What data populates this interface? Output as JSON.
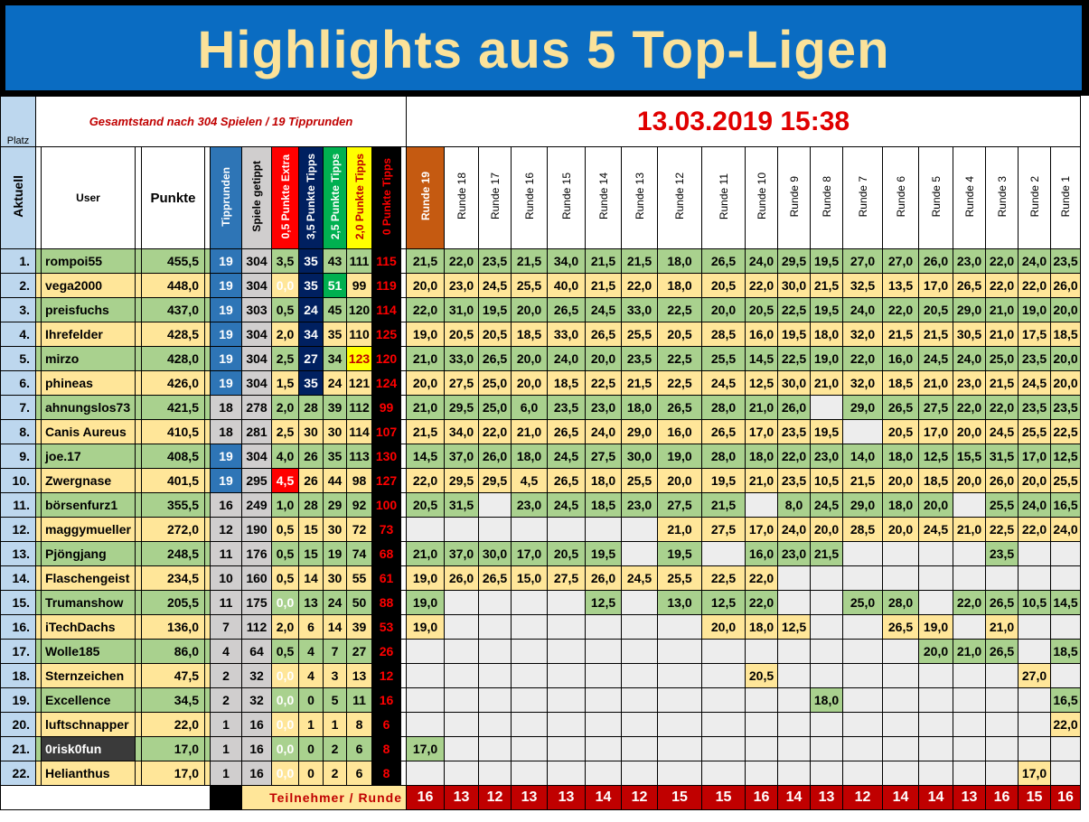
{
  "title": "Highlights aus 5 Top-Ligen",
  "header": {
    "platz": "Platz",
    "gesamtstand": "Gesamtstand nach 304 Spielen / 19 Tipprunden",
    "timestamp": "13.03.2019 15:38",
    "aktuell": "Aktuell",
    "user": "User",
    "punkte": "Punkte",
    "tipprunden": "Tipprunden",
    "spiele": "Spiele getippt",
    "p05": "0,5 Punkte Extra",
    "p35": "3,5 Punkte Tipps",
    "p25": "2,5 Punkte Tipps",
    "p20": "2,0 Punkte Tipps",
    "p0": "0 Punkte Tipps",
    "rounds": [
      "Runde 19",
      "Runde 18",
      "Runde 17",
      "Runde 16",
      "Runde 15",
      "Runde 14",
      "Runde 13",
      "Runde 12",
      "Runde 11",
      "Runde 10",
      "Runde 9",
      "Runde 8",
      "Runde 7",
      "Runde 6",
      "Runde 5",
      "Runde 4",
      "Runde 3",
      "Runde 2",
      "Runde 1"
    ]
  },
  "rows": [
    {
      "rank": "1.",
      "user": "rompoi55",
      "points": "455,5",
      "tr": "19",
      "sg": "304",
      "p05": "3,5",
      "p35": "35",
      "p25": "43",
      "p20": "111",
      "p0": "115",
      "r": [
        "21,5",
        "22,0",
        "23,5",
        "21,5",
        "34,0",
        "21,5",
        "21,5",
        "18,0",
        "26,5",
        "24,0",
        "29,5",
        "19,5",
        "27,0",
        "27,0",
        "26,0",
        "23,0",
        "22,0",
        "24,0",
        "23,5"
      ]
    },
    {
      "rank": "2.",
      "user": "vega2000",
      "points": "448,0",
      "tr": "19",
      "sg": "304",
      "p05": "0,0",
      "p35": "35",
      "p25": "51",
      "p20": "99",
      "p0": "119",
      "r": [
        "20,0",
        "23,0",
        "24,5",
        "25,5",
        "40,0",
        "21,5",
        "22,0",
        "18,0",
        "20,5",
        "22,0",
        "30,0",
        "21,5",
        "32,5",
        "13,5",
        "17,0",
        "26,5",
        "22,0",
        "22,0",
        "26,0"
      ]
    },
    {
      "rank": "3.",
      "user": "preisfuchs",
      "points": "437,0",
      "tr": "19",
      "sg": "303",
      "p05": "0,5",
      "p35": "24",
      "p25": "45",
      "p20": "120",
      "p0": "114",
      "r": [
        "22,0",
        "31,0",
        "19,5",
        "20,0",
        "26,5",
        "24,5",
        "33,0",
        "22,5",
        "20,0",
        "20,5",
        "22,5",
        "19,5",
        "24,0",
        "22,0",
        "20,5",
        "29,0",
        "21,0",
        "19,0",
        "20,0"
      ]
    },
    {
      "rank": "4.",
      "user": "Ihrefelder",
      "points": "428,5",
      "tr": "19",
      "sg": "304",
      "p05": "2,0",
      "p35": "34",
      "p25": "35",
      "p20": "110",
      "p0": "125",
      "r": [
        "19,0",
        "20,5",
        "20,5",
        "18,5",
        "33,0",
        "26,5",
        "25,5",
        "20,5",
        "28,5",
        "16,0",
        "19,5",
        "18,0",
        "32,0",
        "21,5",
        "21,5",
        "30,5",
        "21,0",
        "17,5",
        "18,5"
      ]
    },
    {
      "rank": "5.",
      "user": "mirzo",
      "points": "428,0",
      "tr": "19",
      "sg": "304",
      "p05": "2,5",
      "p35": "27",
      "p25": "34",
      "p20": "123",
      "p0": "120",
      "r": [
        "21,0",
        "33,0",
        "26,5",
        "20,0",
        "24,0",
        "20,0",
        "23,5",
        "22,5",
        "25,5",
        "14,5",
        "22,5",
        "19,0",
        "22,0",
        "16,0",
        "24,5",
        "24,0",
        "25,0",
        "23,5",
        "20,0"
      ]
    },
    {
      "rank": "6.",
      "user": "phineas",
      "points": "426,0",
      "tr": "19",
      "sg": "304",
      "p05": "1,5",
      "p35": "35",
      "p25": "24",
      "p20": "121",
      "p0": "124",
      "r": [
        "20,0",
        "27,5",
        "25,0",
        "20,0",
        "18,5",
        "22,5",
        "21,5",
        "22,5",
        "24,5",
        "12,5",
        "30,0",
        "21,0",
        "32,0",
        "18,5",
        "21,0",
        "23,0",
        "21,5",
        "24,5",
        "20,0"
      ]
    },
    {
      "rank": "7.",
      "user": "ahnungslos73",
      "points": "421,5",
      "tr": "18",
      "sg": "278",
      "p05": "2,0",
      "p35": "28",
      "p25": "39",
      "p20": "112",
      "p0": "99",
      "r": [
        "21,0",
        "29,5",
        "25,0",
        "6,0",
        "23,5",
        "23,0",
        "18,0",
        "26,5",
        "28,0",
        "21,0",
        "26,0",
        "",
        "29,0",
        "26,5",
        "27,5",
        "22,0",
        "22,0",
        "23,5",
        "23,5"
      ]
    },
    {
      "rank": "8.",
      "user": "Canis Aureus",
      "points": "410,5",
      "tr": "18",
      "sg": "281",
      "p05": "2,5",
      "p35": "30",
      "p25": "30",
      "p20": "114",
      "p0": "107",
      "r": [
        "21,5",
        "34,0",
        "22,0",
        "21,0",
        "26,5",
        "24,0",
        "29,0",
        "16,0",
        "26,5",
        "17,0",
        "23,5",
        "19,5",
        "",
        "20,5",
        "17,0",
        "20,0",
        "24,5",
        "25,5",
        "22,5"
      ]
    },
    {
      "rank": "9.",
      "user": "joe.17",
      "points": "408,5",
      "tr": "19",
      "sg": "304",
      "p05": "4,0",
      "p35": "26",
      "p25": "35",
      "p20": "113",
      "p0": "130",
      "r": [
        "14,5",
        "37,0",
        "26,0",
        "18,0",
        "24,5",
        "27,5",
        "30,0",
        "19,0",
        "28,0",
        "18,0",
        "22,0",
        "23,0",
        "14,0",
        "18,0",
        "12,5",
        "15,5",
        "31,5",
        "17,0",
        "12,5"
      ]
    },
    {
      "rank": "10.",
      "user": "Zwergnase",
      "points": "401,5",
      "tr": "19",
      "sg": "295",
      "p05": "4,5",
      "p35": "26",
      "p25": "44",
      "p20": "98",
      "p0": "127",
      "r": [
        "22,0",
        "29,5",
        "29,5",
        "4,5",
        "26,5",
        "18,0",
        "25,5",
        "20,0",
        "19,5",
        "21,0",
        "23,5",
        "10,5",
        "21,5",
        "20,0",
        "18,5",
        "20,0",
        "26,0",
        "20,0",
        "25,5"
      ]
    },
    {
      "rank": "11.",
      "user": "börsenfurz1",
      "points": "355,5",
      "tr": "16",
      "sg": "249",
      "p05": "1,0",
      "p35": "28",
      "p25": "29",
      "p20": "92",
      "p0": "100",
      "r": [
        "20,5",
        "31,5",
        "",
        "23,0",
        "24,5",
        "18,5",
        "23,0",
        "27,5",
        "21,5",
        "",
        "8,0",
        "24,5",
        "29,0",
        "18,0",
        "20,0",
        "",
        "25,5",
        "24,0",
        "16,5"
      ]
    },
    {
      "rank": "12.",
      "user": "maggymueller",
      "points": "272,0",
      "tr": "12",
      "sg": "190",
      "p05": "0,5",
      "p35": "15",
      "p25": "30",
      "p20": "72",
      "p0": "73",
      "r": [
        "",
        "",
        "",
        "",
        "",
        "",
        "",
        "21,0",
        "27,5",
        "17,0",
        "24,0",
        "20,0",
        "28,5",
        "20,0",
        "24,5",
        "21,0",
        "22,5",
        "22,0",
        "24,0"
      ]
    },
    {
      "rank": "13.",
      "user": "Pjöngjang",
      "points": "248,5",
      "tr": "11",
      "sg": "176",
      "p05": "0,5",
      "p35": "15",
      "p25": "19",
      "p20": "74",
      "p0": "68",
      "r": [
        "21,0",
        "37,0",
        "30,0",
        "17,0",
        "20,5",
        "19,5",
        "",
        "19,5",
        "",
        "16,0",
        "23,0",
        "21,5",
        "",
        "",
        "",
        "",
        "23,5",
        "",
        ""
      ]
    },
    {
      "rank": "14.",
      "user": "Flaschengeist",
      "points": "234,5",
      "tr": "10",
      "sg": "160",
      "p05": "0,5",
      "p35": "14",
      "p25": "30",
      "p20": "55",
      "p0": "61",
      "r": [
        "19,0",
        "26,0",
        "26,5",
        "15,0",
        "27,5",
        "26,0",
        "24,5",
        "25,5",
        "22,5",
        "22,0",
        "",
        "",
        "",
        "",
        "",
        "",
        "",
        "",
        ""
      ]
    },
    {
      "rank": "15.",
      "user": "Trumanshow",
      "points": "205,5",
      "tr": "11",
      "sg": "175",
      "p05": "0,0",
      "p35": "13",
      "p25": "24",
      "p20": "50",
      "p0": "88",
      "r": [
        "19,0",
        "",
        "",
        "",
        "",
        "12,5",
        "",
        "13,0",
        "12,5",
        "22,0",
        "",
        "",
        "25,0",
        "28,0",
        "",
        "22,0",
        "26,5",
        "10,5",
        "14,5"
      ]
    },
    {
      "rank": "16.",
      "user": "iTechDachs",
      "points": "136,0",
      "tr": "7",
      "sg": "112",
      "p05": "2,0",
      "p35": "6",
      "p25": "14",
      "p20": "39",
      "p0": "53",
      "r": [
        "19,0",
        "",
        "",
        "",
        "",
        "",
        "",
        "",
        "20,0",
        "18,0",
        "12,5",
        "",
        "",
        "26,5",
        "19,0",
        "",
        "21,0",
        "",
        ""
      ]
    },
    {
      "rank": "17.",
      "user": "Wolle185",
      "points": "86,0",
      "tr": "4",
      "sg": "64",
      "p05": "0,5",
      "p35": "4",
      "p25": "7",
      "p20": "27",
      "p0": "26",
      "r": [
        "",
        "",
        "",
        "",
        "",
        "",
        "",
        "",
        "",
        "",
        "",
        "",
        "",
        "",
        "20,0",
        "21,0",
        "26,5",
        "",
        "18,5"
      ]
    },
    {
      "rank": "18.",
      "user": "Sternzeichen",
      "points": "47,5",
      "tr": "2",
      "sg": "32",
      "p05": "0,0",
      "p35": "4",
      "p25": "3",
      "p20": "13",
      "p0": "12",
      "r": [
        "",
        "",
        "",
        "",
        "",
        "",
        "",
        "",
        "",
        "20,5",
        "",
        "",
        "",
        "",
        "",
        "",
        "",
        "27,0",
        ""
      ]
    },
    {
      "rank": "19.",
      "user": "Excellence",
      "points": "34,5",
      "tr": "2",
      "sg": "32",
      "p05": "0,0",
      "p35": "0",
      "p25": "5",
      "p20": "11",
      "p0": "16",
      "r": [
        "",
        "",
        "",
        "",
        "",
        "",
        "",
        "",
        "",
        "",
        "",
        "18,0",
        "",
        "",
        "",
        "",
        "",
        "",
        "16,5"
      ]
    },
    {
      "rank": "20.",
      "user": "luftschnapper",
      "points": "22,0",
      "tr": "1",
      "sg": "16",
      "p05": "0,0",
      "p35": "1",
      "p25": "1",
      "p20": "8",
      "p0": "6",
      "r": [
        "",
        "",
        "",
        "",
        "",
        "",
        "",
        "",
        "",
        "",
        "",
        "",
        "",
        "",
        "",
        "",
        "",
        "",
        "22,0"
      ]
    },
    {
      "rank": "21.",
      "user": "0risk0fun",
      "points": "17,0",
      "tr": "1",
      "sg": "16",
      "p05": "0,0",
      "p35": "0",
      "p25": "2",
      "p20": "6",
      "p0": "8",
      "r": [
        "17,0",
        "",
        "",
        "",
        "",
        "",
        "",
        "",
        "",
        "",
        "",
        "",
        "",
        "",
        "",
        "",
        "",
        "",
        ""
      ]
    },
    {
      "rank": "22.",
      "user": "Helianthus",
      "points": "17,0",
      "tr": "1",
      "sg": "16",
      "p05": "0,0",
      "p35": "0",
      "p25": "2",
      "p20": "6",
      "p0": "8",
      "r": [
        "",
        "",
        "",
        "",
        "",
        "",
        "",
        "",
        "",
        "",
        "",
        "",
        "",
        "",
        "",
        "",
        "",
        "17,0",
        ""
      ]
    }
  ],
  "footer": {
    "label": "Teilnehmer / Runde",
    "counts": [
      "16",
      "13",
      "12",
      "13",
      "13",
      "14",
      "12",
      "15",
      "15",
      "16",
      "14",
      "13",
      "12",
      "14",
      "14",
      "13",
      "16",
      "15",
      "16"
    ]
  },
  "colors": {
    "title_bg": "#0a6cc2",
    "title_text": "#fbe29a",
    "green_row": "#a9d18e",
    "yellow_row": "#ffe699",
    "accent_red": "#c00000",
    "round19": "#c55a11"
  }
}
